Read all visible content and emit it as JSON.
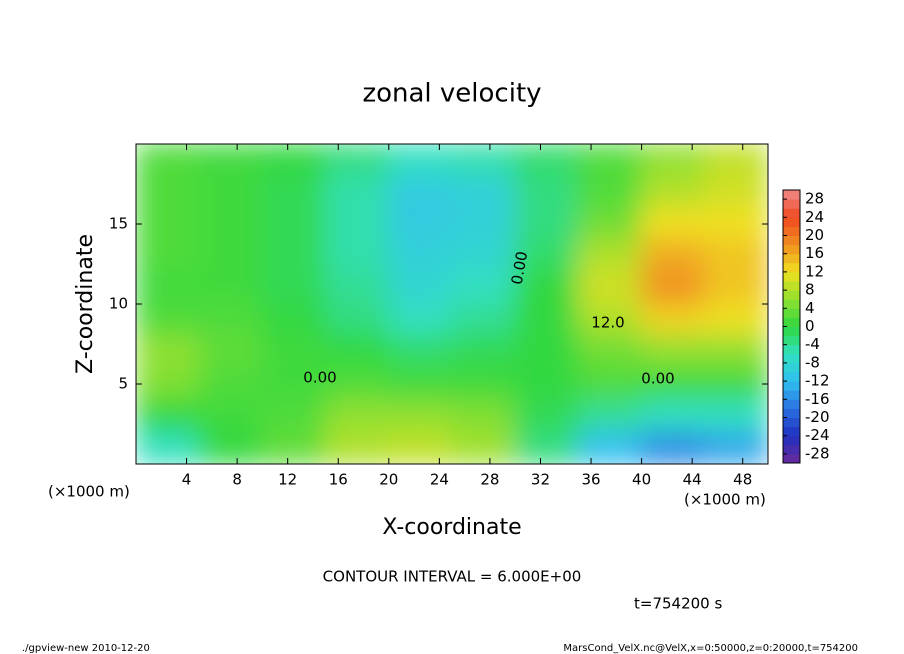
{
  "chart_data": {
    "type": "heatmap",
    "title": "zonal velocity",
    "x_label": "X-coordinate",
    "y_label": "Z-coordinate",
    "x_unit_label": "(×1000 m)",
    "y_unit_label": "(×1000 m)",
    "x": [
      2.5,
      7.5,
      12.5,
      17.5,
      22.5,
      27.5,
      32.5,
      37.5,
      42.5,
      47.5
    ],
    "y": [
      19,
      17,
      15,
      13,
      11,
      9,
      7,
      5,
      3,
      1
    ],
    "values": [
      [
        2,
        1,
        0,
        -3,
        -6,
        -5,
        -2,
        2,
        6,
        9
      ],
      [
        2,
        1,
        -1,
        -5,
        -10,
        -9,
        -3,
        2,
        8,
        10
      ],
      [
        2,
        1,
        -1,
        -5,
        -10,
        -9,
        -3,
        4,
        12,
        12
      ],
      [
        2,
        1,
        -1,
        -5,
        -9,
        -8,
        -2,
        8,
        16,
        14
      ],
      [
        1,
        1,
        -1,
        -4,
        -8,
        -6,
        0,
        10,
        18,
        14
      ],
      [
        2,
        2,
        0,
        -3,
        -6,
        -4,
        0,
        8,
        13,
        12
      ],
      [
        6,
        3,
        1,
        0,
        -2,
        -1,
        0,
        4,
        6,
        6
      ],
      [
        5,
        2,
        1,
        2,
        1,
        1,
        0,
        2,
        1,
        1
      ],
      [
        0,
        1,
        2,
        6,
        6,
        5,
        -1,
        -4,
        -6,
        -6
      ],
      [
        -6,
        0,
        3,
        8,
        9,
        7,
        -3,
        -12,
        -16,
        -14
      ]
    ],
    "xlim": [
      0,
      50
    ],
    "ylim": [
      0,
      20
    ],
    "xticks": [
      4,
      8,
      12,
      16,
      20,
      24,
      28,
      32,
      36,
      40,
      44,
      48
    ],
    "yticks": [
      5,
      10,
      15
    ],
    "clim": [
      -30,
      30
    ],
    "cticks": [
      28,
      24,
      20,
      16,
      12,
      8,
      4,
      0,
      -4,
      -8,
      -12,
      -16,
      -20,
      -24,
      -28
    ],
    "colormap": [
      "#6a2a9a",
      "#2030c0",
      "#2a70e0",
      "#30c0f0",
      "#30e0c0",
      "#30d840",
      "#90e030",
      "#f0e020",
      "#f09020",
      "#f04820",
      "#f08a8a"
    ],
    "contour_labels": [
      "0.00",
      "12.0",
      "0.00",
      "0.00"
    ],
    "contour_interval": "CONTOUR INTERVAL = 6.000E+00",
    "time_label": "t=754200 s",
    "footer_left": "./gpview-new  2010-12-20",
    "footer_right": "MarsCond_VelX.nc@VelX,x=0:50000,z=0:20000,t=754200"
  }
}
